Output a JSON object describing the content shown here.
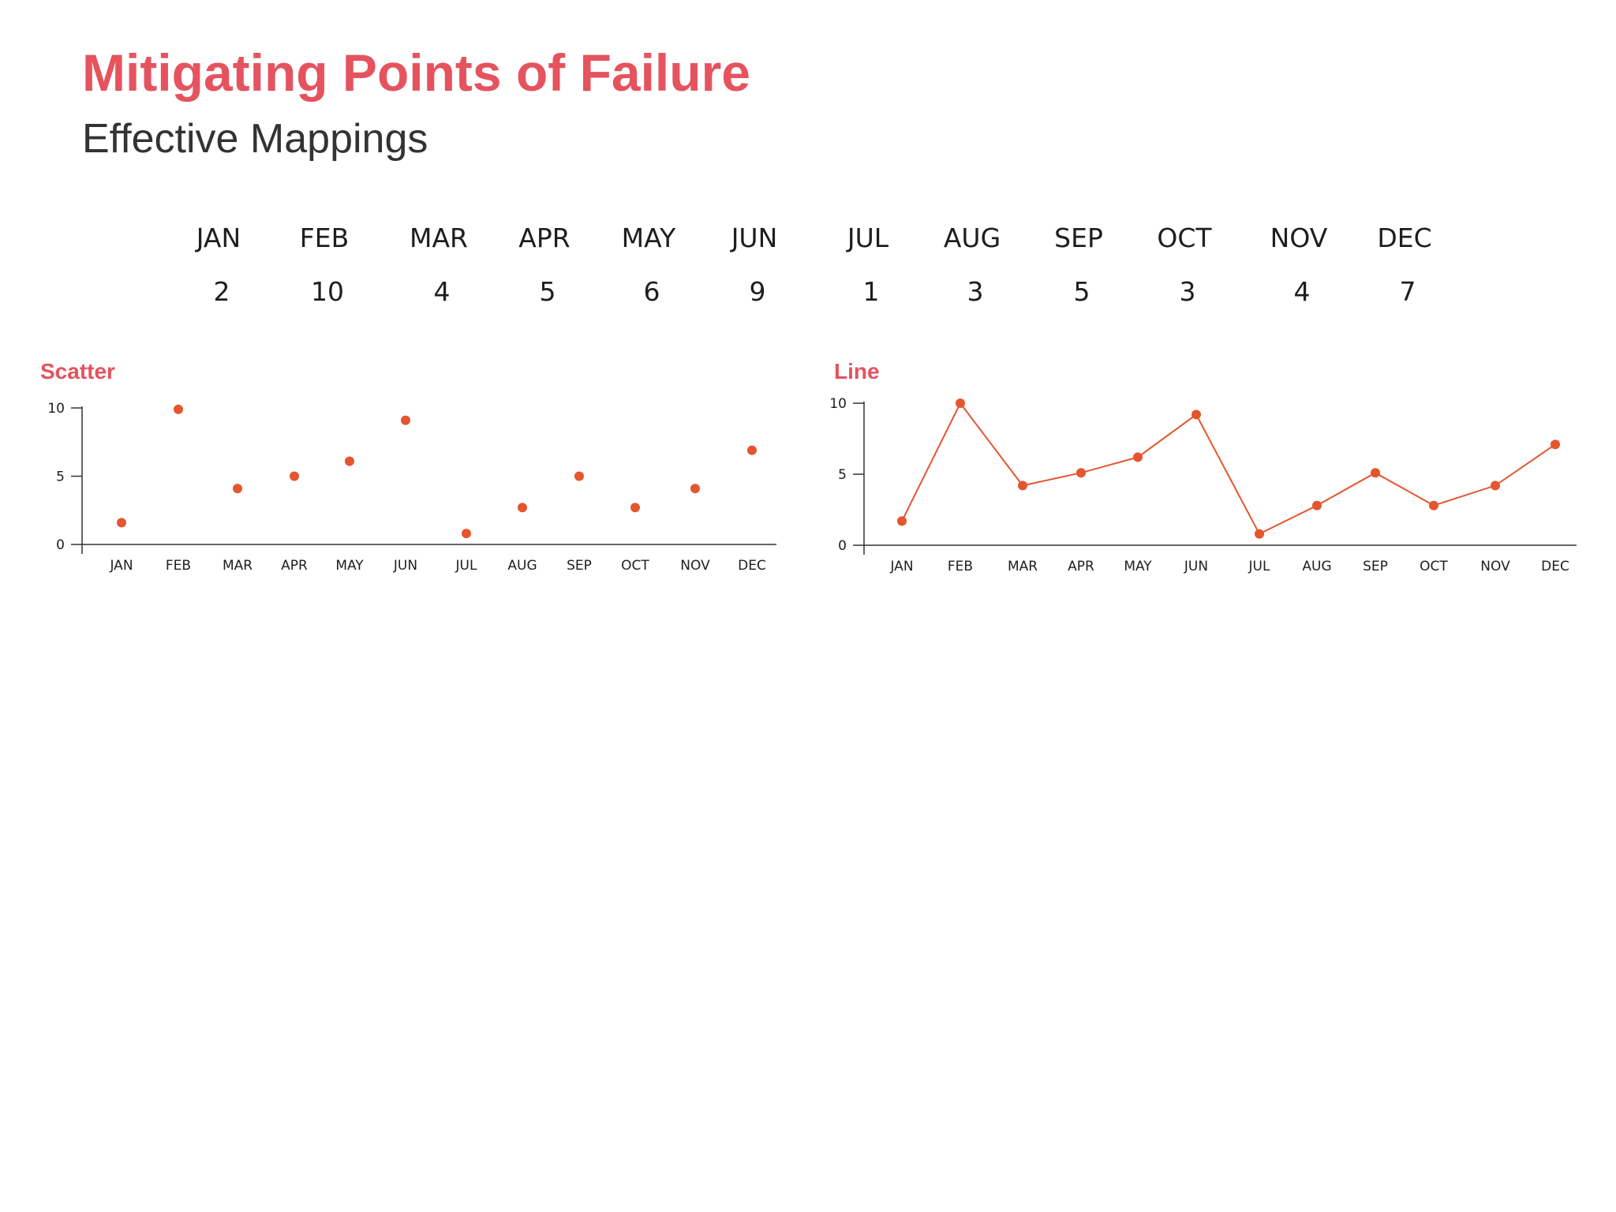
{
  "title": "Mitigating Points of Failure",
  "subtitle": "Effective Mappings",
  "colors": {
    "title": "#e5535e",
    "subtitle": "#333333",
    "chart_label": "#e5535e",
    "mark": "#e5552e",
    "axis": "#333333"
  },
  "summary": {
    "months": [
      "JAN",
      "FEB",
      "MAR",
      "APR",
      "MAY",
      "JUN",
      "JUL",
      "AUG",
      "SEP",
      "OCT",
      "NOV",
      "DEC"
    ],
    "values": [
      "2",
      "10",
      "4",
      "5",
      "6",
      "9",
      "1",
      "3",
      "5",
      "3",
      "4",
      "7"
    ]
  },
  "chart_data": [
    {
      "type": "scatter",
      "title": "Scatter",
      "xlabel": "",
      "ylabel": "",
      "categories": [
        "JAN",
        "FEB",
        "MAR",
        "APR",
        "MAY",
        "JUN",
        "JUL",
        "AUG",
        "SEP",
        "OCT",
        "NOV",
        "DEC"
      ],
      "values": [
        1.6,
        9.9,
        4.1,
        5.0,
        6.1,
        9.1,
        0.8,
        2.7,
        5.0,
        2.7,
        4.1,
        6.9
      ],
      "yticks": [
        0,
        5,
        10
      ],
      "ylim": [
        0,
        10
      ],
      "grid": false,
      "legend": "none"
    },
    {
      "type": "line",
      "title": "Line",
      "xlabel": "",
      "ylabel": "",
      "categories": [
        "JAN",
        "FEB",
        "MAR",
        "APR",
        "MAY",
        "JUN",
        "JUL",
        "AUG",
        "SEP",
        "OCT",
        "NOV",
        "DEC"
      ],
      "values": [
        1.7,
        10.0,
        4.2,
        5.1,
        6.2,
        9.2,
        0.8,
        2.8,
        5.1,
        2.8,
        4.2,
        7.1
      ],
      "yticks": [
        0,
        5,
        10
      ],
      "ylim": [
        0,
        10
      ],
      "grid": false,
      "legend": "none"
    }
  ]
}
